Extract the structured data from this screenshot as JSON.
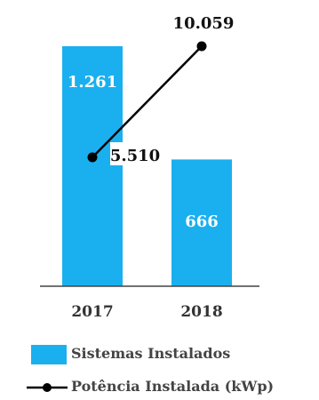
{
  "colors": {
    "bar": "#1ab0ef",
    "line": "#000000",
    "axis": "#444444"
  },
  "chart_data": {
    "type": "bar",
    "categories": [
      "2017",
      "2018"
    ],
    "series": [
      {
        "name": "Sistemas Instalados",
        "type": "bar",
        "values": [
          1261,
          666
        ],
        "labels": [
          "1.261",
          "666"
        ]
      },
      {
        "name": "Potência Instalada (kWp)",
        "type": "line",
        "values": [
          5510,
          10059
        ],
        "labels": [
          "5.510",
          "10.059"
        ]
      }
    ],
    "legend": [
      "Sistemas Instalados",
      "Potência Instalada (kWp)"
    ],
    "legend_position": "bottom-left"
  }
}
